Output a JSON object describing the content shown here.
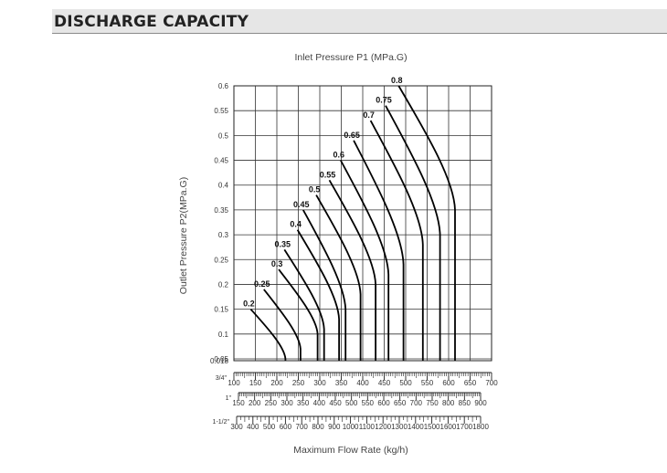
{
  "header": {
    "title": "DISCHARGE CAPACITY"
  },
  "chart_data": {
    "type": "line",
    "title": "Inlet Pressure P1 (MPa.G)",
    "xlabel": "Maximum Flow Rate (kg/h)",
    "ylabel": "Outlet Pressure P2(MPa.G)",
    "ylim": [
      0.018,
      0.6
    ],
    "y_ticks": [
      "0.6",
      "0.55",
      "0.5",
      "0.45",
      "0.4",
      "0.35",
      "0.3",
      "0.25",
      "0.2",
      "0.15",
      "0.1",
      "0.05",
      "0.018"
    ],
    "grid": true,
    "x_scales": [
      {
        "label": "3/4\"",
        "ticks": [
          "100",
          "150",
          "200",
          "250",
          "300",
          "350",
          "400",
          "450",
          "500",
          "550",
          "600",
          "650",
          "700"
        ]
      },
      {
        "label": "1\"",
        "ticks": [
          "150",
          "200",
          "250",
          "300",
          "350",
          "400",
          "450",
          "500",
          "550",
          "600",
          "650",
          "700",
          "750",
          "800",
          "850",
          "900"
        ]
      },
      {
        "label": "1-1/2\"",
        "ticks": [
          "300",
          "400",
          "500",
          "600",
          "700",
          "800",
          "900",
          "1000",
          "1100",
          "1200",
          "1300",
          "1400",
          "1500",
          "1600",
          "1700",
          "1800"
        ]
      }
    ],
    "series": [
      {
        "name": "0.2",
        "x_at_bottom": 220,
        "top_y": 0.15,
        "knee_y": 0.05
      },
      {
        "name": "0.25",
        "x_at_bottom": 255,
        "top_y": 0.19,
        "knee_y": 0.07
      },
      {
        "name": "0.3",
        "x_at_bottom": 295,
        "top_y": 0.23,
        "knee_y": 0.1
      },
      {
        "name": "0.35",
        "x_at_bottom": 310,
        "top_y": 0.27,
        "knee_y": 0.11
      },
      {
        "name": "0.4",
        "x_at_bottom": 345,
        "top_y": 0.31,
        "knee_y": 0.13
      },
      {
        "name": "0.45",
        "x_at_bottom": 360,
        "top_y": 0.35,
        "knee_y": 0.15
      },
      {
        "name": "0.5",
        "x_at_bottom": 395,
        "top_y": 0.38,
        "knee_y": 0.18
      },
      {
        "name": "0.55",
        "x_at_bottom": 430,
        "top_y": 0.41,
        "knee_y": 0.2
      },
      {
        "name": "0.6",
        "x_at_bottom": 460,
        "top_y": 0.45,
        "knee_y": 0.22
      },
      {
        "name": "0.65",
        "x_at_bottom": 495,
        "top_y": 0.49,
        "knee_y": 0.24
      },
      {
        "name": "0.7",
        "x_at_bottom": 540,
        "top_y": 0.53,
        "knee_y": 0.28
      },
      {
        "name": "0.75",
        "x_at_bottom": 580,
        "top_y": 0.56,
        "knee_y": 0.3
      },
      {
        "name": "0.8",
        "x_at_bottom": 615,
        "top_y": 0.6,
        "knee_y": 0.35
      }
    ]
  }
}
